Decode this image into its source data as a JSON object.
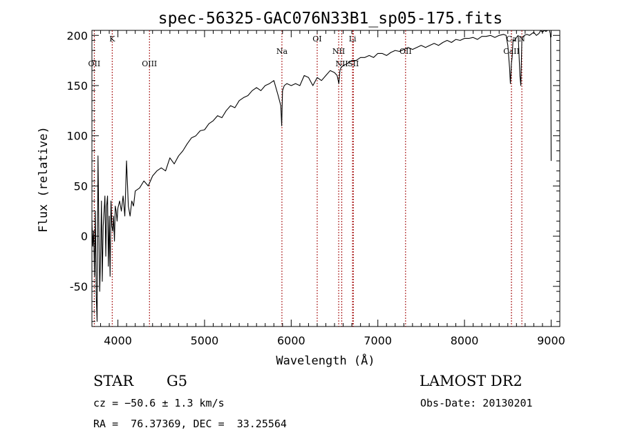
{
  "chart_data": {
    "type": "line",
    "title": "spec-56325-GAC076N33B1_sp05-175.fits",
    "xlabel": "Wavelength (Å)",
    "ylabel": "Flux (relative)",
    "xlim": [
      3700,
      9100
    ],
    "ylim": [
      -90,
      205
    ],
    "xticks": [
      4000,
      5000,
      6000,
      7000,
      8000,
      9000
    ],
    "yticks": [
      -50,
      0,
      50,
      100,
      150,
      200
    ],
    "grid": false,
    "series": [
      {
        "color": "#000000",
        "x": [
          3700,
          3710,
          3720,
          3730,
          3740,
          3750,
          3760,
          3770,
          3780,
          3790,
          3800,
          3810,
          3820,
          3830,
          3840,
          3850,
          3860,
          3870,
          3880,
          3890,
          3900,
          3910,
          3920,
          3930,
          3940,
          3950,
          3960,
          3970,
          3980,
          3990,
          4000,
          4020,
          4040,
          4060,
          4080,
          4100,
          4120,
          4140,
          4160,
          4180,
          4200,
          4250,
          4300,
          4350,
          4400,
          4450,
          4500,
          4550,
          4600,
          4650,
          4700,
          4750,
          4800,
          4850,
          4900,
          4950,
          5000,
          5050,
          5100,
          5150,
          5200,
          5250,
          5300,
          5350,
          5400,
          5450,
          5500,
          5550,
          5600,
          5650,
          5700,
          5750,
          5800,
          5850,
          5880,
          5890,
          5900,
          5920,
          5950,
          6000,
          6050,
          6100,
          6150,
          6200,
          6250,
          6300,
          6350,
          6400,
          6450,
          6500,
          6530,
          6550,
          6563,
          6575,
          6600,
          6650,
          6700,
          6750,
          6800,
          6850,
          6900,
          6950,
          7000,
          7050,
          7100,
          7150,
          7200,
          7250,
          7300,
          7350,
          7400,
          7450,
          7500,
          7550,
          7600,
          7650,
          7700,
          7750,
          7800,
          7850,
          7900,
          7950,
          8000,
          8050,
          8100,
          8150,
          8200,
          8250,
          8300,
          8350,
          8400,
          8450,
          8480,
          8500,
          8520,
          8530,
          8542,
          8550,
          8560,
          8580,
          8600,
          8620,
          8640,
          8650,
          8662,
          8670,
          8690,
          8720,
          8750,
          8780,
          8800,
          8830,
          8860,
          8880,
          8900,
          8920,
          8940,
          8960,
          8970,
          8980,
          8990,
          8995,
          9000
        ],
        "y": [
          15,
          -10,
          5,
          -40,
          25,
          -60,
          -85,
          80,
          10,
          -55,
          -20,
          35,
          -45,
          10,
          25,
          40,
          -20,
          30,
          40,
          -30,
          20,
          -40,
          35,
          10,
          5,
          20,
          -5,
          30,
          25,
          15,
          28,
          35,
          25,
          40,
          20,
          75,
          30,
          20,
          35,
          30,
          45,
          48,
          55,
          50,
          60,
          65,
          68,
          65,
          78,
          72,
          80,
          85,
          92,
          98,
          100,
          105,
          106,
          112,
          115,
          120,
          118,
          125,
          130,
          128,
          135,
          138,
          140,
          145,
          148,
          145,
          150,
          152,
          155,
          140,
          130,
          110,
          145,
          150,
          152,
          150,
          152,
          150,
          160,
          158,
          150,
          158,
          155,
          160,
          165,
          163,
          160,
          152,
          165,
          168,
          170,
          172,
          175,
          175,
          178,
          178,
          180,
          178,
          182,
          182,
          180,
          183,
          185,
          184,
          186,
          188,
          186,
          188,
          190,
          188,
          190,
          192,
          190,
          193,
          195,
          193,
          196,
          195,
          197,
          197,
          198,
          196,
          199,
          199,
          200,
          198,
          200,
          201,
          200,
          190,
          168,
          152,
          172,
          178,
          195,
          195,
          198,
          200,
          160,
          150,
          195,
          198,
          200,
          201,
          200,
          202,
          203,
          200,
          202,
          205,
          203,
          206,
          204,
          207,
          206,
          205,
          202,
          197,
          75
        ]
      }
    ],
    "lines": [
      {
        "label": "OII",
        "x": 3727,
        "row": "low"
      },
      {
        "label": "K",
        "x": 3934,
        "row": "top"
      },
      {
        "label": "OIII",
        "x": 4364,
        "row": "low"
      },
      {
        "label": "Na",
        "x": 5893,
        "row": "mid"
      },
      {
        "label": "OI",
        "x": 6300,
        "row": "top"
      },
      {
        "label": "NII",
        "x": 6548,
        "row": "mid"
      },
      {
        "label": "NII",
        "x": 6584,
        "row": "low"
      },
      {
        "label": "Li",
        "x": 6708,
        "row": "top"
      },
      {
        "label": "SII",
        "x": 6717,
        "row": "low"
      },
      {
        "label": "OII",
        "x": 7320,
        "row": "mid"
      },
      {
        "label": "CaII",
        "x": 8542,
        "row": "mid"
      },
      {
        "label": "Ca",
        "x": 8542,
        "row": "top"
      },
      {
        "label": "N",
        "x": 8662,
        "row": "top"
      }
    ]
  },
  "info": {
    "object_type": "STAR",
    "subclass": "G5",
    "survey": "LAMOST DR2",
    "cz": "cz = −50.6 ± 1.3 km/s",
    "obs_date": "Obs-Date: 20130201",
    "radec": "RA =  76.37369, DEC =  33.25564"
  }
}
